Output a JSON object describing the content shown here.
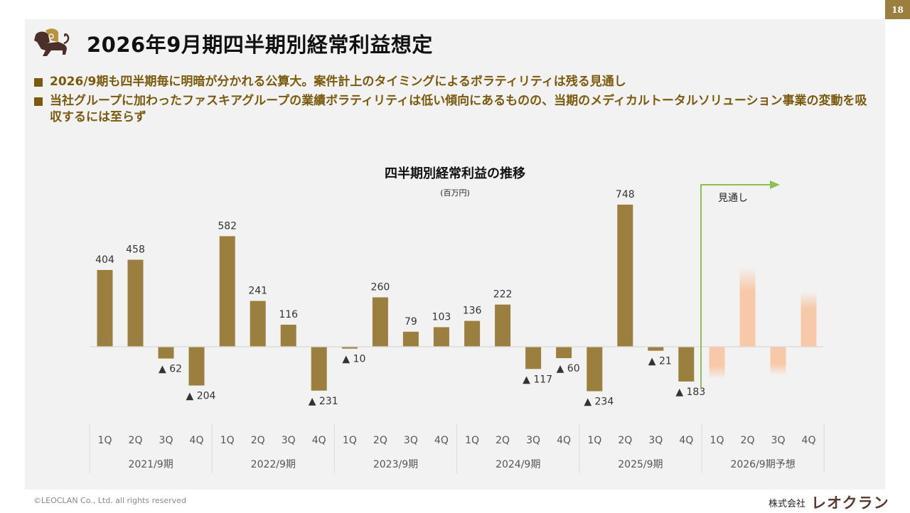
{
  "page": {
    "number": "18",
    "title": "2026年9月期四半期別経常利益想定",
    "bullets": [
      "2026/9期も四半期毎に明暗が分かれる公算大。案件計上のタイミングによるボラティリティは残る見通し",
      "当社グループに加わったファスキアグループの業績ボラティリティは低い傾向にあるものの、当期のメディカルトータルソリューション事業の変動を吸収するには至らず"
    ],
    "footer_copyright": "©LEOCLAN Co., Ltd. all rights reserved",
    "footer_company_prefix": "株式会社",
    "footer_company_brand": "レオクラン"
  },
  "colors": {
    "actual_bar": "#9b7f3f",
    "forecast_bar": "#f8c9a8",
    "forecast_arrow": "#8cc152",
    "page_badge": "#9b7f3f",
    "bullet_text": "#7a5a0c"
  },
  "chart_data": {
    "type": "bar",
    "title": "四半期別経常利益の推移",
    "unit_label": "(百万円)",
    "negative_prefix": "▲",
    "forecast_annotation": "見通し",
    "ylim": [
      -300,
      800
    ],
    "grid": false,
    "legend": "none",
    "groups": [
      {
        "label": "2021/9期",
        "quarters": [
          "1Q",
          "2Q",
          "3Q",
          "4Q"
        ],
        "values": [
          404,
          458,
          -62,
          -204
        ],
        "forecast": false
      },
      {
        "label": "2022/9期",
        "quarters": [
          "1Q",
          "2Q",
          "3Q",
          "4Q"
        ],
        "values": [
          582,
          241,
          116,
          -231
        ],
        "forecast": false
      },
      {
        "label": "2023/9期",
        "quarters": [
          "1Q",
          "2Q",
          "3Q",
          "4Q"
        ],
        "values": [
          -10,
          260,
          79,
          103
        ],
        "forecast": false
      },
      {
        "label": "2024/9期",
        "quarters": [
          "1Q",
          "2Q",
          "3Q",
          "4Q"
        ],
        "values": [
          136,
          222,
          -117,
          -60
        ],
        "forecast": false
      },
      {
        "label": "2025/9期",
        "quarters": [
          "1Q",
          "2Q",
          "3Q",
          "4Q"
        ],
        "values": [
          -234,
          748,
          -21,
          -183
        ],
        "forecast": false
      },
      {
        "label": "2026/9期予想",
        "quarters": [
          "1Q",
          "2Q",
          "3Q",
          "4Q"
        ],
        "values": [
          -170,
          420,
          -150,
          290
        ],
        "forecast": true,
        "values_shown": false
      }
    ]
  }
}
